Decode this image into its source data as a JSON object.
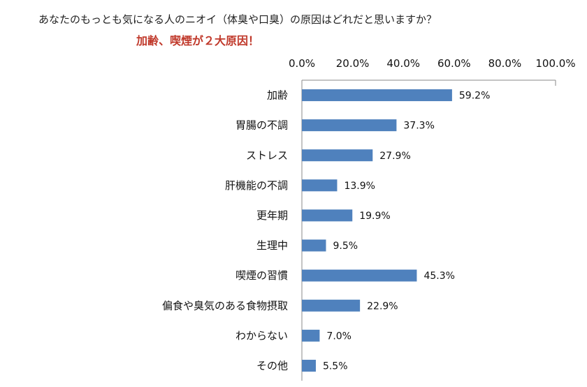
{
  "header": {
    "question": "あなたのもっとも気になる人のニオイ（体臭や口臭）の原因はどれだと思いますか？",
    "subtitle": "加齢、喫煙が２大原因！"
  },
  "colors": {
    "bar": "#4f81bd",
    "subtitle": "#c0392b",
    "axis": "#888888"
  },
  "chart_data": {
    "type": "bar",
    "orientation": "horizontal",
    "title": "あなたのもっとも気になる人のニオイ（体臭や口臭）の原因はどれだと思いますか？",
    "subtitle": "加齢、喫煙が２大原因！",
    "categories": [
      "加齢",
      "胃腸の不調",
      "ストレス",
      "肝機能の不調",
      "更年期",
      "生理中",
      "喫煙の習慣",
      "偏食や臭気のある食物摂取",
      "わからない",
      "その他"
    ],
    "values": [
      59.2,
      37.3,
      27.9,
      13.9,
      19.9,
      9.5,
      45.3,
      22.9,
      7.0,
      5.5
    ],
    "value_labels": [
      "59.2%",
      "37.3%",
      "27.9%",
      "13.9%",
      "19.9%",
      "9.5%",
      "45.3%",
      "22.9%",
      "7.0%",
      "5.5%"
    ],
    "x_ticks": [
      "0.0%",
      "20.0%",
      "40.0%",
      "60.0%",
      "80.0%",
      "100.0%"
    ],
    "xlim": [
      0,
      100
    ],
    "xaxis_position": "top",
    "grid": false,
    "legend": "none"
  }
}
